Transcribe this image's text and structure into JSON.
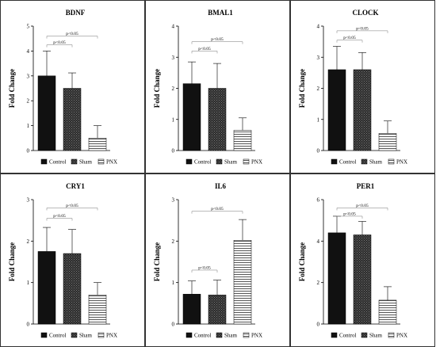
{
  "legend": [
    "Control",
    "Sham",
    "PNX"
  ],
  "colors": {
    "control": "#111111",
    "sham": "#3a3a3a",
    "pnx": "#ffffff",
    "stroke": "#000000",
    "border": "#333333"
  },
  "chart_data": [
    {
      "type": "bar",
      "title": "BDNF",
      "ylabel": "Fold Change",
      "categories": [
        "Control",
        "Sham",
        "PNX"
      ],
      "values": [
        3.0,
        2.5,
        0.5
      ],
      "errors": [
        1.0,
        0.62,
        0.5
      ],
      "ylim": [
        0,
        5
      ],
      "yticks": [
        0,
        1,
        2,
        3,
        4,
        5
      ],
      "annotations": [
        {
          "label": "p<0.05",
          "from": 0,
          "to": 1,
          "y": 4.25
        },
        {
          "label": "p<0.05",
          "from": 0,
          "to": 2,
          "y": 4.6
        }
      ]
    },
    {
      "type": "bar",
      "title": "BMAL1",
      "ylabel": "Fold Change",
      "categories": [
        "Control",
        "Sham",
        "PNX"
      ],
      "values": [
        2.15,
        2.0,
        0.65
      ],
      "errors": [
        0.7,
        0.8,
        0.4
      ],
      "ylim": [
        0,
        4
      ],
      "yticks": [
        0,
        1,
        2,
        3,
        4
      ],
      "annotations": [
        {
          "label": "p<0.05",
          "from": 0,
          "to": 1,
          "y": 3.2
        },
        {
          "label": "p<0.05",
          "from": 0,
          "to": 2,
          "y": 3.5
        }
      ]
    },
    {
      "type": "bar",
      "title": "CLOCK",
      "ylabel": "Fold Change",
      "categories": [
        "Control",
        "Sham",
        "PNX"
      ],
      "values": [
        2.6,
        2.6,
        0.55
      ],
      "errors": [
        0.75,
        0.55,
        0.4
      ],
      "ylim": [
        0,
        4
      ],
      "yticks": [
        0,
        1,
        2,
        3,
        4
      ],
      "annotations": [
        {
          "label": "p<0.05",
          "from": 0,
          "to": 1,
          "y": 3.55
        },
        {
          "label": "p<0.05",
          "from": 0,
          "to": 2,
          "y": 3.85
        }
      ]
    },
    {
      "type": "bar",
      "title": "CRY1",
      "ylabel": "Fold Change",
      "categories": [
        "Control",
        "Sham",
        "PNX"
      ],
      "values": [
        1.75,
        1.7,
        0.7
      ],
      "errors": [
        0.58,
        0.58,
        0.3
      ],
      "ylim": [
        0,
        3
      ],
      "yticks": [
        0,
        1,
        2,
        3
      ],
      "annotations": [
        {
          "label": "p<0.05",
          "from": 0,
          "to": 1,
          "y": 2.55
        },
        {
          "label": "p<0.05",
          "from": 0,
          "to": 2,
          "y": 2.8
        }
      ]
    },
    {
      "type": "bar",
      "title": "IL6",
      "ylabel": "Fold Change",
      "categories": [
        "Control",
        "Sham",
        "PNX"
      ],
      "values": [
        0.72,
        0.7,
        2.02
      ],
      "errors": [
        0.32,
        0.36,
        0.5
      ],
      "ylim": [
        0,
        3
      ],
      "yticks": [
        0,
        1,
        2,
        3
      ],
      "annotations": [
        {
          "label": "p<0.05",
          "from": 0,
          "to": 1,
          "y": 1.3
        },
        {
          "label": "p<0.05",
          "from": 0,
          "to": 2,
          "y": 2.72
        }
      ]
    },
    {
      "type": "bar",
      "title": "PER1",
      "ylabel": "Fold Change",
      "categories": [
        "Control",
        "Sham",
        "PNX"
      ],
      "values": [
        4.4,
        4.3,
        1.15
      ],
      "errors": [
        0.8,
        0.65,
        0.65
      ],
      "ylim": [
        0,
        6
      ],
      "yticks": [
        0,
        2,
        4,
        6
      ],
      "annotations": [
        {
          "label": "p<0.05",
          "from": 0,
          "to": 1,
          "y": 5.2
        },
        {
          "label": "p<0.05",
          "from": 0,
          "to": 2,
          "y": 5.6
        }
      ]
    }
  ]
}
